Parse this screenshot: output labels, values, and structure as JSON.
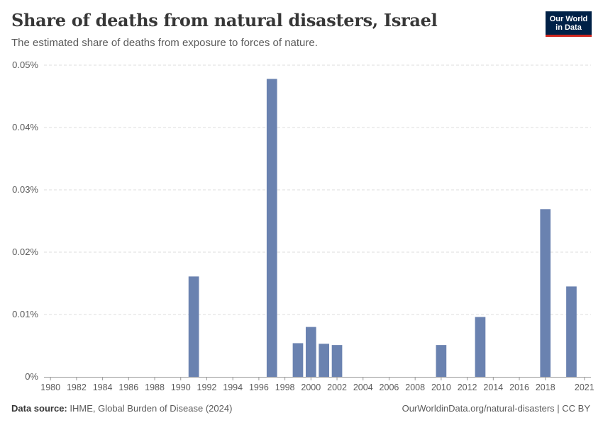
{
  "header": {
    "title": "Share of deaths from natural disasters, Israel",
    "subtitle": "The estimated share of deaths from exposure to forces of nature."
  },
  "logo": {
    "line1": "Our World",
    "line2": "in Data"
  },
  "footer": {
    "source_label": "Data source:",
    "source_text": "IHME, Global Burden of Disease (2024)",
    "url_text": "OurWorldinData.org/natural-disasters | CC BY"
  },
  "colors": {
    "bar": "#6a82b0",
    "grid": "#dddddd",
    "axis": "#999999",
    "text": "#5b5b5b"
  },
  "chart_data": {
    "type": "bar",
    "title": "Share of deaths from natural disasters, Israel",
    "xlabel": "",
    "ylabel": "",
    "xlim": [
      1980,
      2021
    ],
    "ylim": [
      0,
      0.05
    ],
    "yticks": [
      0,
      0.01,
      0.02,
      0.03,
      0.04,
      0.05
    ],
    "ytick_labels": [
      "0%",
      "0.01%",
      "0.02%",
      "0.03%",
      "0.04%",
      "0.05%"
    ],
    "xticks": [
      1980,
      1982,
      1984,
      1986,
      1988,
      1990,
      1992,
      1994,
      1996,
      1998,
      2000,
      2002,
      2004,
      2006,
      2008,
      2010,
      2012,
      2014,
      2016,
      2018,
      2021
    ],
    "grid": true,
    "series": [
      {
        "name": "Israel",
        "x": [
          1991,
          1997,
          1999,
          2000,
          2001,
          2002,
          2010,
          2013,
          2018,
          2020
        ],
        "values": [
          0.0161,
          0.0478,
          0.0054,
          0.008,
          0.0053,
          0.0051,
          0.0051,
          0.0096,
          0.0269,
          0.0145
        ]
      }
    ]
  }
}
